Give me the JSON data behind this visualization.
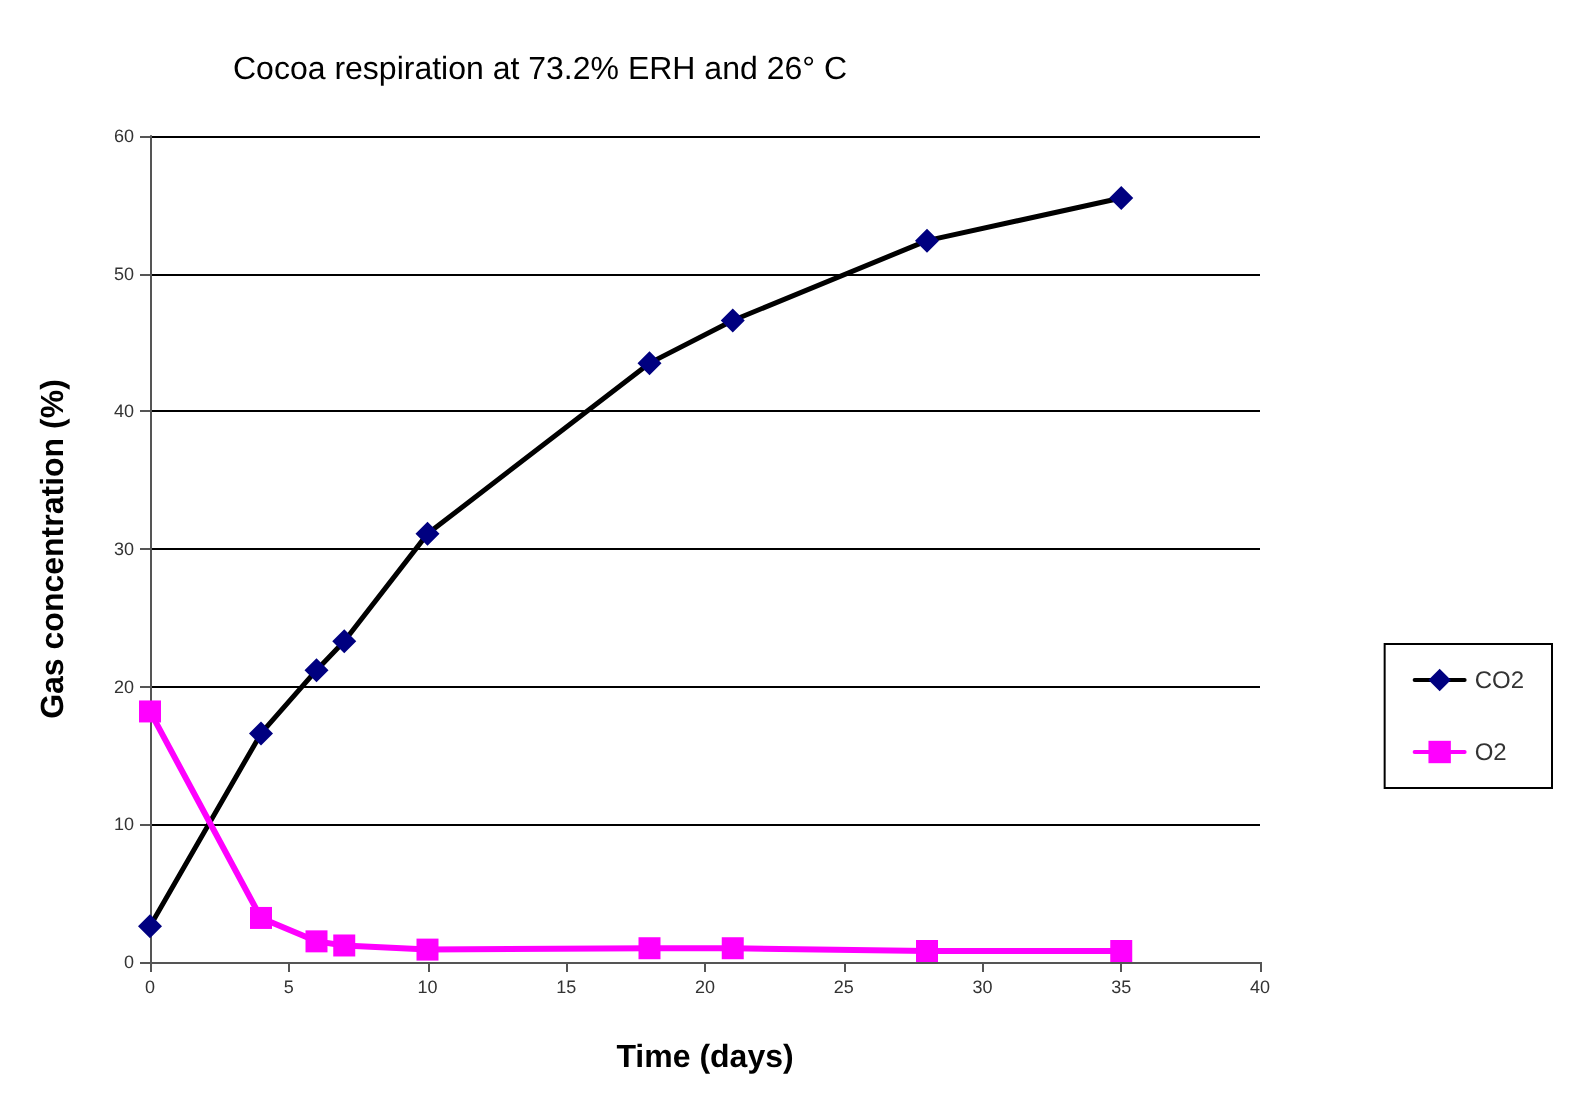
{
  "chart_data": {
    "type": "line",
    "title": "Cocoa respiration at 73.2% ERH and 26° C",
    "xlabel": "Time (days)",
    "ylabel": "Gas concentration (%)",
    "x": [
      0,
      4,
      6,
      7,
      10,
      18,
      21,
      28,
      35
    ],
    "series": [
      {
        "name": "CO2",
        "color": "#000080",
        "marker": "diamond",
        "values": [
          2.6,
          16.6,
          21.2,
          23.3,
          31.1,
          43.5,
          46.6,
          52.4,
          55.5
        ]
      },
      {
        "name": "O2",
        "color": "#ff00ff",
        "marker": "square",
        "values": [
          18.2,
          3.2,
          1.5,
          1.2,
          0.9,
          1.0,
          1.0,
          0.8,
          0.8
        ]
      }
    ],
    "xlim": [
      0,
      40
    ],
    "xticks": [
      0,
      5,
      10,
      15,
      20,
      25,
      30,
      35,
      40
    ],
    "ylim": [
      0,
      60
    ],
    "yticks": [
      0,
      10,
      20,
      30,
      40,
      50,
      60
    ],
    "grid": "y",
    "legend": "right"
  }
}
